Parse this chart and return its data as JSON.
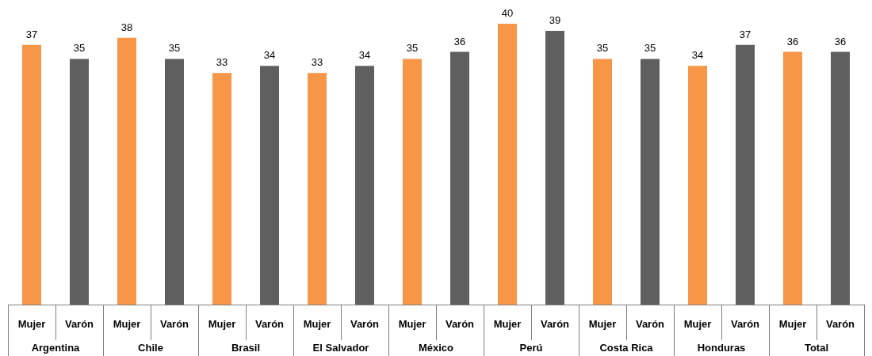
{
  "chart_data": {
    "type": "bar",
    "categories": [
      "Argentina",
      "Chile",
      "Brasil",
      "El Salvador",
      "México",
      "Perú",
      "Costa Rica",
      "Honduras",
      "Total"
    ],
    "series": [
      {
        "name": "Mujer",
        "color": "#f79646",
        "values": [
          37,
          38,
          33,
          33,
          35,
          40,
          35,
          34,
          36
        ]
      },
      {
        "name": "Varón",
        "color": "#5f5f5f",
        "values": [
          35,
          35,
          34,
          34,
          36,
          39,
          35,
          37,
          36
        ]
      }
    ],
    "data_labels": true,
    "legend": false
  }
}
